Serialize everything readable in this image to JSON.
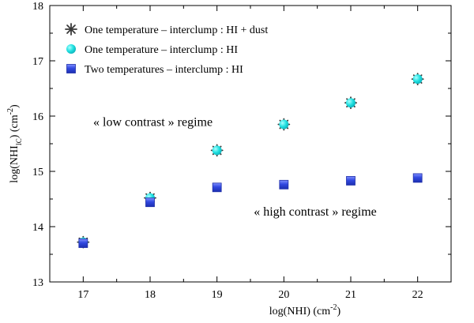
{
  "chart_data": {
    "type": "scatter",
    "xlabel": "log(NHI)  (cm",
    "xlabel_sup": "-2",
    "xlabel_end": ")",
    "ylabel_main": "log(NHI",
    "ylabel_sub": "IC",
    "ylabel_mid": ")  (cm",
    "ylabel_sup": "-2",
    "ylabel_end": ")",
    "xlim": [
      16.5,
      22.5
    ],
    "ylim": [
      13,
      18
    ],
    "x_ticks": [
      17,
      18,
      19,
      20,
      21,
      22
    ],
    "y_ticks": [
      13,
      14,
      15,
      16,
      17,
      18
    ],
    "grid": false,
    "legend_position": "top-left",
    "series": [
      {
        "name": "One temperature – interclump : HI + dust",
        "marker": "asterisk",
        "color": "#333333",
        "x": [
          17,
          18,
          19,
          20,
          21,
          22
        ],
        "y": [
          13.72,
          14.52,
          15.38,
          15.85,
          16.24,
          16.67
        ]
      },
      {
        "name": "One temperature – interclump : HI",
        "marker": "circle",
        "color": "#22dede",
        "x": [
          17,
          18,
          19,
          20,
          21,
          22
        ],
        "y": [
          13.72,
          14.52,
          15.38,
          15.85,
          16.24,
          16.67
        ]
      },
      {
        "name": "Two temperatures – interclump : HI",
        "marker": "square",
        "color": "#3a50d8",
        "x": [
          17,
          18,
          19,
          20,
          21,
          22
        ],
        "y": [
          13.7,
          14.44,
          14.71,
          14.76,
          14.83,
          14.88
        ]
      }
    ],
    "annotations": [
      {
        "text": "« low contrast » regime",
        "x": 17.15,
        "y": 15.82
      },
      {
        "text": "« high contrast » regime",
        "x": 19.55,
        "y": 14.2
      }
    ]
  }
}
